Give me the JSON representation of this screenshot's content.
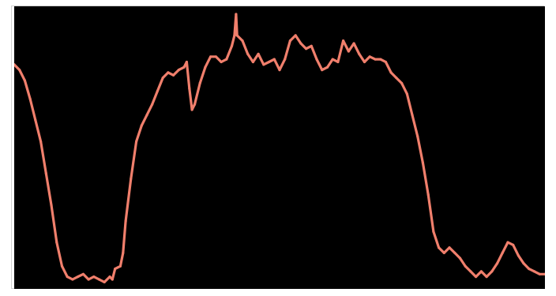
{
  "colors": {
    "background": "#000000",
    "line": "#f07f6c",
    "frame": "#ffffff"
  },
  "chart_data": {
    "type": "line",
    "title": "",
    "xlabel": "",
    "ylabel": "",
    "grid": false,
    "legend": "none",
    "xlim": [
      0,
      100
    ],
    "ylim": [
      0,
      100
    ],
    "series": [
      {
        "values": [
          {
            "x": 0.0,
            "y": 81
          },
          {
            "x": 1.0,
            "y": 79
          },
          {
            "x": 2.0,
            "y": 75
          },
          {
            "x": 3.0,
            "y": 68
          },
          {
            "x": 4.0,
            "y": 60
          },
          {
            "x": 5.0,
            "y": 52
          },
          {
            "x": 6.0,
            "y": 40
          },
          {
            "x": 7.0,
            "y": 28
          },
          {
            "x": 8.0,
            "y": 14
          },
          {
            "x": 9.0,
            "y": 5
          },
          {
            "x": 10.0,
            "y": 1
          },
          {
            "x": 11.0,
            "y": 0
          },
          {
            "x": 12.0,
            "y": 1
          },
          {
            "x": 13.0,
            "y": 2
          },
          {
            "x": 14.0,
            "y": 0
          },
          {
            "x": 15.0,
            "y": 1
          },
          {
            "x": 16.0,
            "y": 0
          },
          {
            "x": 17.0,
            "y": -1
          },
          {
            "x": 18.0,
            "y": 1
          },
          {
            "x": 18.5,
            "y": 0
          },
          {
            "x": 19.0,
            "y": 4
          },
          {
            "x": 20.0,
            "y": 5
          },
          {
            "x": 20.5,
            "y": 10
          },
          {
            "x": 21.0,
            "y": 22
          },
          {
            "x": 22.0,
            "y": 38
          },
          {
            "x": 23.0,
            "y": 52
          },
          {
            "x": 24.0,
            "y": 58
          },
          {
            "x": 25.0,
            "y": 62
          },
          {
            "x": 26.0,
            "y": 66
          },
          {
            "x": 27.0,
            "y": 71
          },
          {
            "x": 28.0,
            "y": 76
          },
          {
            "x": 29.0,
            "y": 78
          },
          {
            "x": 30.0,
            "y": 77
          },
          {
            "x": 31.0,
            "y": 79
          },
          {
            "x": 32.0,
            "y": 80
          },
          {
            "x": 32.5,
            "y": 82
          },
          {
            "x": 33.0,
            "y": 72
          },
          {
            "x": 33.5,
            "y": 64
          },
          {
            "x": 34.0,
            "y": 66
          },
          {
            "x": 35.0,
            "y": 74
          },
          {
            "x": 36.0,
            "y": 80
          },
          {
            "x": 37.0,
            "y": 84
          },
          {
            "x": 38.0,
            "y": 84
          },
          {
            "x": 39.0,
            "y": 82
          },
          {
            "x": 40.0,
            "y": 83
          },
          {
            "x": 41.0,
            "y": 88
          },
          {
            "x": 41.5,
            "y": 92
          },
          {
            "x": 41.8,
            "y": 100
          },
          {
            "x": 42.0,
            "y": 92
          },
          {
            "x": 43.0,
            "y": 90
          },
          {
            "x": 44.0,
            "y": 85
          },
          {
            "x": 45.0,
            "y": 82
          },
          {
            "x": 46.0,
            "y": 85
          },
          {
            "x": 47.0,
            "y": 81
          },
          {
            "x": 48.0,
            "y": 82
          },
          {
            "x": 49.0,
            "y": 83
          },
          {
            "x": 50.0,
            "y": 79
          },
          {
            "x": 51.0,
            "y": 83
          },
          {
            "x": 52.0,
            "y": 90
          },
          {
            "x": 53.0,
            "y": 92
          },
          {
            "x": 54.0,
            "y": 89
          },
          {
            "x": 55.0,
            "y": 87
          },
          {
            "x": 56.0,
            "y": 88
          },
          {
            "x": 57.0,
            "y": 83
          },
          {
            "x": 58.0,
            "y": 79
          },
          {
            "x": 59.0,
            "y": 80
          },
          {
            "x": 60.0,
            "y": 83
          },
          {
            "x": 61.0,
            "y": 82
          },
          {
            "x": 62.0,
            "y": 90
          },
          {
            "x": 63.0,
            "y": 86
          },
          {
            "x": 64.0,
            "y": 89
          },
          {
            "x": 65.0,
            "y": 85
          },
          {
            "x": 66.0,
            "y": 82
          },
          {
            "x": 67.0,
            "y": 84
          },
          {
            "x": 68.0,
            "y": 83
          },
          {
            "x": 69.0,
            "y": 83
          },
          {
            "x": 70.0,
            "y": 82
          },
          {
            "x": 71.0,
            "y": 78
          },
          {
            "x": 72.0,
            "y": 76
          },
          {
            "x": 73.0,
            "y": 74
          },
          {
            "x": 74.0,
            "y": 70
          },
          {
            "x": 75.0,
            "y": 62
          },
          {
            "x": 76.0,
            "y": 54
          },
          {
            "x": 77.0,
            "y": 44
          },
          {
            "x": 78.0,
            "y": 32
          },
          {
            "x": 79.0,
            "y": 18
          },
          {
            "x": 80.0,
            "y": 12
          },
          {
            "x": 81.0,
            "y": 10
          },
          {
            "x": 82.0,
            "y": 12
          },
          {
            "x": 83.0,
            "y": 10
          },
          {
            "x": 84.0,
            "y": 8
          },
          {
            "x": 85.0,
            "y": 5
          },
          {
            "x": 86.0,
            "y": 3
          },
          {
            "x": 87.0,
            "y": 1
          },
          {
            "x": 88.0,
            "y": 3
          },
          {
            "x": 89.0,
            "y": 1
          },
          {
            "x": 90.0,
            "y": 3
          },
          {
            "x": 91.0,
            "y": 6
          },
          {
            "x": 92.0,
            "y": 10
          },
          {
            "x": 93.0,
            "y": 14
          },
          {
            "x": 94.0,
            "y": 13
          },
          {
            "x": 95.0,
            "y": 9
          },
          {
            "x": 96.0,
            "y": 6
          },
          {
            "x": 97.0,
            "y": 4
          },
          {
            "x": 98.0,
            "y": 3
          },
          {
            "x": 99.0,
            "y": 2
          },
          {
            "x": 100.0,
            "y": 2
          }
        ]
      }
    ]
  }
}
